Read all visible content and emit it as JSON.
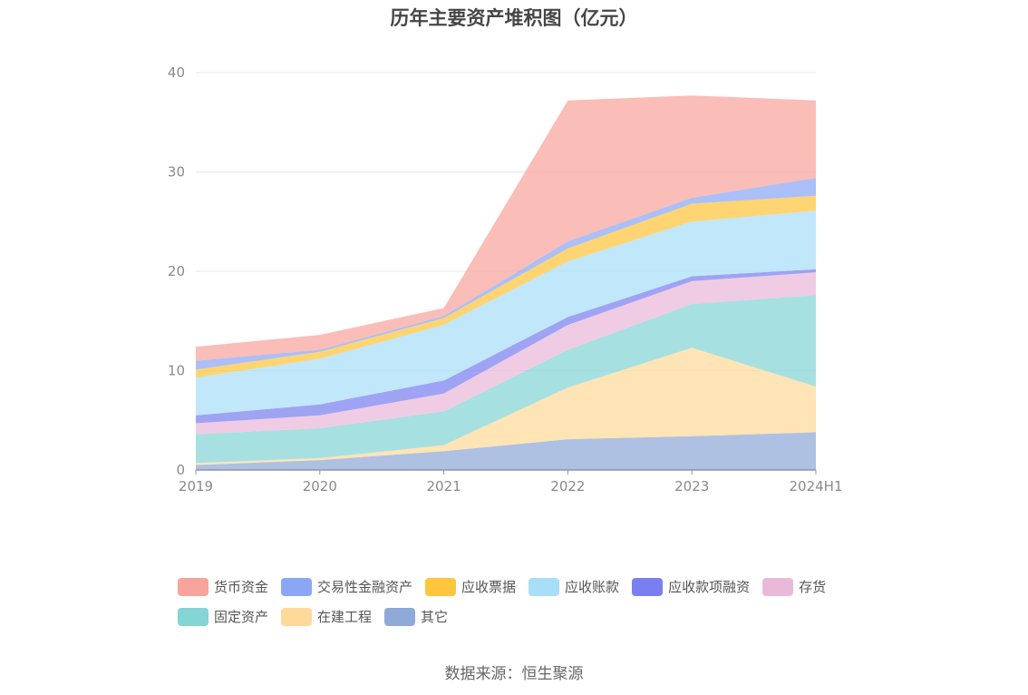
{
  "chart_data": {
    "type": "area",
    "stacked": true,
    "title": "历年主要资产堆积图（亿元）",
    "x": [
      "2019",
      "2020",
      "2021",
      "2022",
      "2023",
      "2024H1"
    ],
    "ylim": [
      0,
      40
    ],
    "yticks": [
      0,
      10,
      20,
      30,
      40
    ],
    "grid": true,
    "legend_position": "bottom",
    "series": [
      {
        "name": "其它",
        "color": "#8fa9d8",
        "values": [
          0.5,
          1.0,
          1.9,
          3.1,
          3.4,
          3.8
        ]
      },
      {
        "name": "在建工程",
        "color": "#ffd999",
        "values": [
          0.2,
          0.2,
          0.6,
          5.2,
          8.9,
          4.6
        ]
      },
      {
        "name": "固定资产",
        "color": "#85d4d6",
        "values": [
          2.9,
          3.0,
          3.4,
          3.8,
          4.4,
          9.2
        ]
      },
      {
        "name": "存货",
        "color": "#eab9d9",
        "values": [
          1.1,
          1.3,
          1.8,
          2.5,
          2.3,
          2.3
        ]
      },
      {
        "name": "应收款项融资",
        "color": "#7a7ff0",
        "values": [
          0.8,
          1.1,
          1.3,
          0.8,
          0.5,
          0.3
        ]
      },
      {
        "name": "应收账款",
        "color": "#a9def8",
        "values": [
          3.8,
          4.6,
          5.6,
          5.6,
          5.5,
          5.9
        ]
      },
      {
        "name": "应收票据",
        "color": "#ffc53d",
        "values": [
          0.8,
          0.7,
          0.7,
          1.3,
          1.8,
          1.5
        ]
      },
      {
        "name": "交易性金融资产",
        "color": "#8ba6f5",
        "values": [
          0.9,
          0.2,
          0.2,
          0.7,
          0.6,
          1.8
        ]
      },
      {
        "name": "货币资金",
        "color": "#f8a49c",
        "values": [
          1.4,
          1.5,
          0.8,
          14.2,
          10.3,
          7.8
        ]
      }
    ],
    "legend_order": [
      "货币资金",
      "交易性金融资产",
      "应收票据",
      "应收账款",
      "应收款项融资",
      "存货",
      "固定资产",
      "在建工程",
      "其它"
    ]
  },
  "source_note": "数据来源：恒生聚源"
}
